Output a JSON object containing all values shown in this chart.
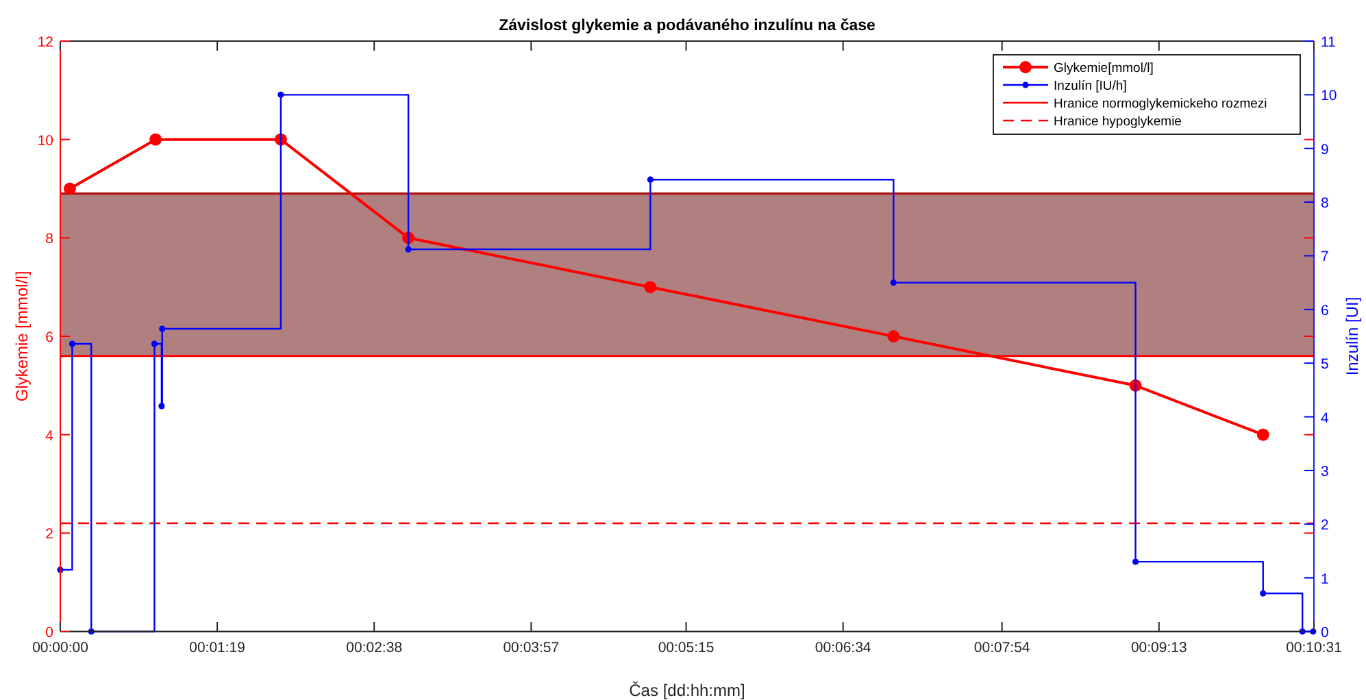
{
  "chart_data": {
    "type": "line",
    "title": "Závislost glykemie a podávaného inzulínu na čase",
    "xlabel": "Čas [dd:hh:mm]",
    "ylabel": "Glykemie [mmol/l]",
    "y2label": "Inzulín [UI]",
    "xlim": [
      0,
      10.5167
    ],
    "xticks": [
      {
        "value": 0,
        "label": "00:00:00"
      },
      {
        "value": 1.3167,
        "label": "00:01:19"
      },
      {
        "value": 2.6333,
        "label": "00:02:38"
      },
      {
        "value": 3.95,
        "label": "00:03:57"
      },
      {
        "value": 5.25,
        "label": "00:05:15"
      },
      {
        "value": 6.5667,
        "label": "00:06:34"
      },
      {
        "value": 7.9,
        "label": "00:07:54"
      },
      {
        "value": 9.2167,
        "label": "00:09:13"
      },
      {
        "value": 10.5167,
        "label": "00:10:31"
      }
    ],
    "ylim": [
      0,
      12
    ],
    "yticks": [
      0,
      2,
      4,
      6,
      8,
      10,
      12
    ],
    "y2lim": [
      0,
      11
    ],
    "y2ticks": [
      0,
      1,
      2,
      3,
      4,
      5,
      6,
      7,
      8,
      9,
      10,
      11
    ],
    "series": [
      {
        "name": "Glykemie[mmol/l]",
        "color": "#ff0000",
        "marker": "circle",
        "x": [
          0.08,
          0.8,
          1.85,
          2.92,
          4.95,
          6.99,
          9.02,
          10.09
        ],
        "values": [
          9,
          10,
          10,
          8,
          7,
          6,
          5,
          4
        ]
      },
      {
        "name": "Inzulín [IU/h]",
        "type": "step",
        "axis": "y2",
        "color": "#0000ff",
        "marker": "circle",
        "x": [
          0,
          0.1,
          0.26,
          0.79,
          0.85,
          0.855,
          1.85,
          2.92,
          4.95,
          6.99,
          9.02,
          10.09,
          10.42,
          10.51
        ],
        "values": [
          1.15,
          5.36,
          0,
          5.36,
          4.2,
          5.64,
          10,
          7.12,
          8.42,
          6.5,
          1.3,
          0.71,
          0,
          0
        ]
      }
    ],
    "bands": [
      {
        "axis": "y",
        "from": 5.6,
        "to": 8.9,
        "color": "#b08080"
      }
    ],
    "ref_lines": [
      {
        "axis": "y",
        "value": 5.6,
        "label": "Hranice normoglykemickeho rozmezi",
        "color": "#ff0000",
        "line_style": "solid"
      },
      {
        "axis": "y",
        "value": 8.9,
        "color": "#b01010",
        "line_style": "solid"
      },
      {
        "axis": "y",
        "value": 2.2,
        "label": "Hranice hypoglykemie",
        "color": "#ff0000",
        "line_style": "dashed"
      }
    ],
    "legend": "top right",
    "grid": false
  }
}
